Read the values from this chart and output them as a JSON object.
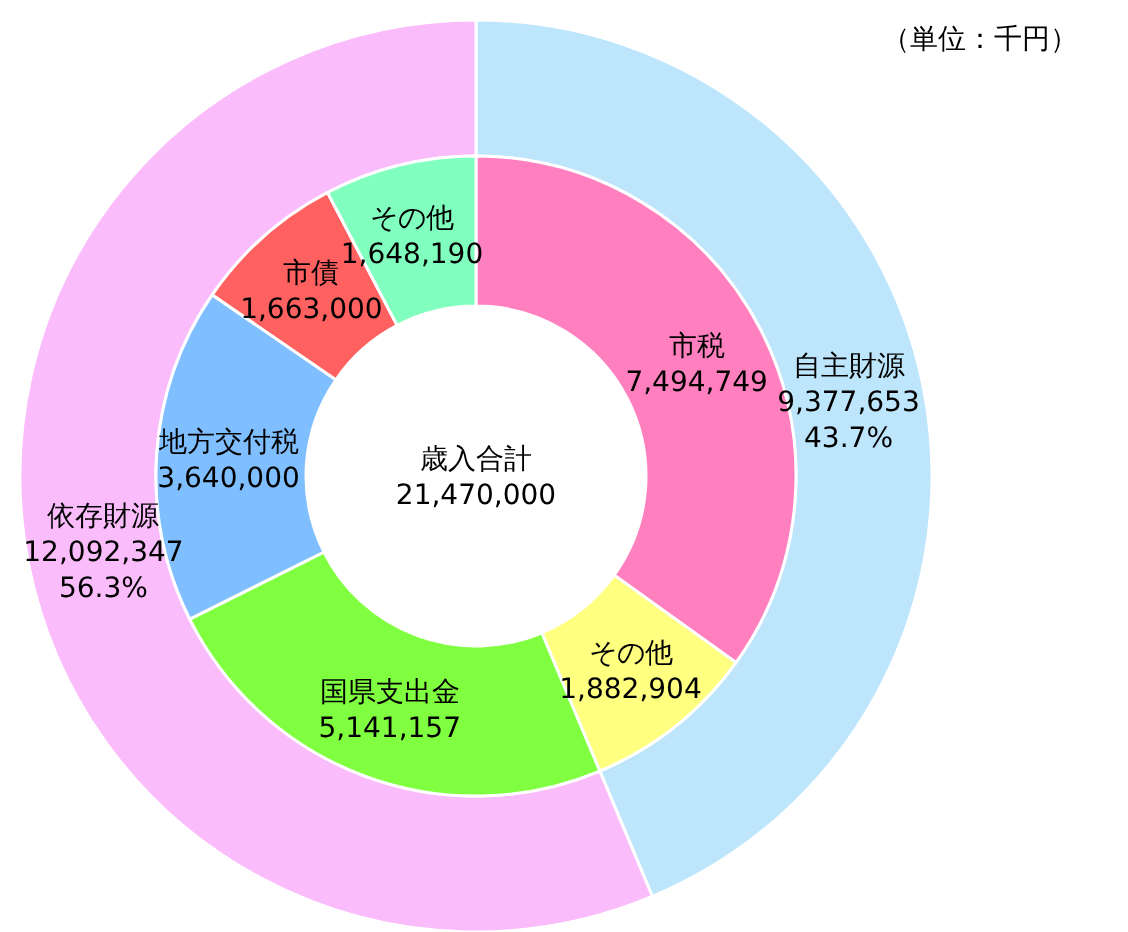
{
  "chart_data": [
    {
      "type": "donut",
      "categories": [
        "自主財源",
        "依存財源"
      ],
      "values": [
        9377653,
        12092347
      ],
      "colors": [
        "#bde5fb",
        "#fbbcfb"
      ],
      "value_labels": [
        "9,377,653 43.7%",
        "12,092,347 56.3%"
      ],
      "annotations": [
        "（単位：千円）"
      ]
    },
    {
      "type": "donut",
      "categories": [
        "市税",
        "その他",
        "国県支出金",
        "地方交付税",
        "市債",
        "その他"
      ],
      "values": [
        7494749,
        1882904,
        5141157,
        3640000,
        1663000,
        1648190
      ],
      "colors": [
        "#ff7fbf",
        "#ffff80",
        "#80ff40",
        "#80bfff",
        "#ff6060",
        "#80ffbf"
      ],
      "value_labels": [
        "7,494,749",
        "1,882,904",
        "5,141,157",
        "3,640,000",
        "1,663,000",
        "1,648,190"
      ],
      "annotations": [
        "歳入合計",
        "21,470,000"
      ]
    }
  ]
}
